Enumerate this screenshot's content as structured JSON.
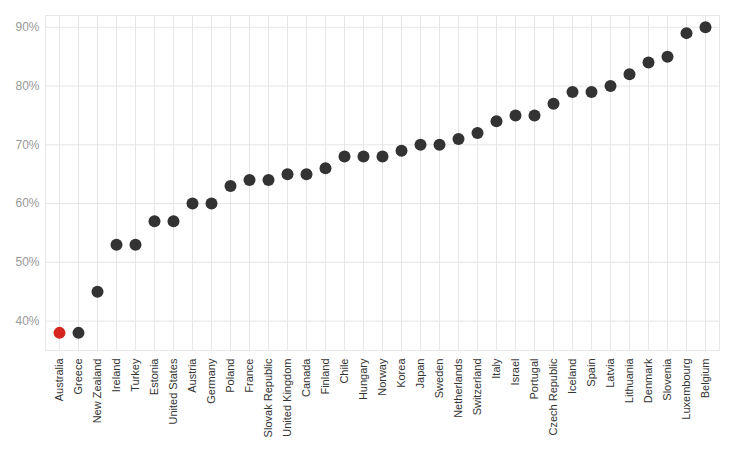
{
  "chart_data": {
    "type": "scatter",
    "categories": [
      "Australia",
      "Greece",
      "New Zealand",
      "Ireland",
      "Turkey",
      "Estonia",
      "United States",
      "Austria",
      "Germany",
      "Poland",
      "France",
      "Slovak Republic",
      "United Kingdom",
      "Canada",
      "Finland",
      "Chile",
      "Hungary",
      "Norway",
      "Korea",
      "Japan",
      "Sweden",
      "Netherlands",
      "Switzerland",
      "Italy",
      "Israel",
      "Portugal",
      "Czech Republic",
      "Iceland",
      "Spain",
      "Latvia",
      "Lithuania",
      "Denmark",
      "Slovenia",
      "Luxembourg",
      "Belgium"
    ],
    "values": [
      38,
      38,
      45,
      53,
      53,
      57,
      57,
      60,
      60,
      63,
      64,
      64,
      65,
      65,
      66,
      68,
      68,
      68,
      69,
      70,
      70,
      71,
      72,
      74,
      75,
      75,
      77,
      79,
      79,
      80,
      82,
      84,
      85,
      89,
      90
    ],
    "colors": [
      "#d7261e",
      "#333333",
      "#333333",
      "#333333",
      "#333333",
      "#333333",
      "#333333",
      "#333333",
      "#333333",
      "#333333",
      "#333333",
      "#333333",
      "#333333",
      "#333333",
      "#333333",
      "#333333",
      "#333333",
      "#333333",
      "#333333",
      "#333333",
      "#333333",
      "#333333",
      "#333333",
      "#333333",
      "#333333",
      "#333333",
      "#333333",
      "#333333",
      "#333333",
      "#333333",
      "#333333",
      "#333333",
      "#333333",
      "#333333",
      "#333333"
    ],
    "marker": "circle",
    "ylim": [
      35,
      92
    ],
    "yticks": [
      {
        "value": 40,
        "label": "40%"
      },
      {
        "value": 50,
        "label": "50%"
      },
      {
        "value": 60,
        "label": "60%"
      },
      {
        "value": 70,
        "label": "70%"
      },
      {
        "value": 80,
        "label": "80%"
      },
      {
        "value": 90,
        "label": "90%"
      }
    ],
    "grid": true
  }
}
